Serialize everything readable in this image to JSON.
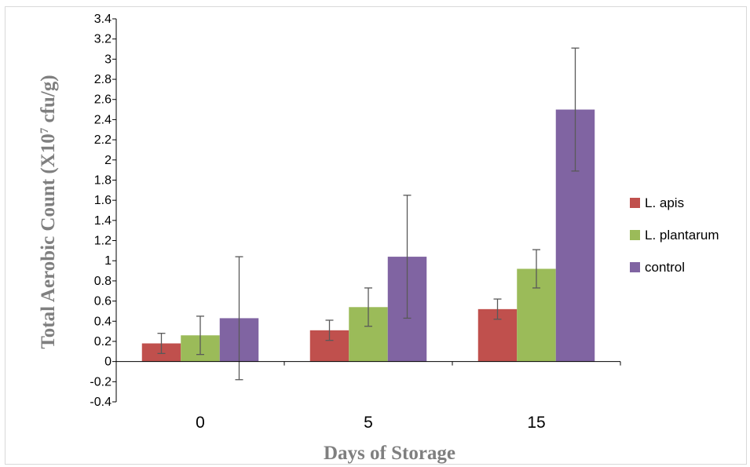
{
  "chart_data": {
    "type": "bar",
    "categories": [
      "0",
      "5",
      "15"
    ],
    "series": [
      {
        "name": "L. apis",
        "color": "#c0504d",
        "values": [
          0.18,
          0.31,
          0.52
        ],
        "errors": [
          0.1,
          0.1,
          0.1
        ]
      },
      {
        "name": "L. plantarum",
        "color": "#9bbb59",
        "values": [
          0.26,
          0.54,
          0.92
        ],
        "errors": [
          0.19,
          0.19,
          0.19
        ]
      },
      {
        "name": "control",
        "color": "#8064a2",
        "values": [
          0.43,
          1.04,
          2.5
        ],
        "errors": [
          0.61,
          0.61,
          0.61
        ]
      }
    ],
    "title": "",
    "xlabel": "Days of Storage",
    "ylabel_main": "Total Aerobic Count (X10",
    "ylabel_sup": "7",
    "ylabel_tail": " cfu/g)",
    "ylim": [
      -0.4,
      3.4
    ],
    "yticks": [
      "3.4",
      "3.2",
      "3",
      "2.8",
      "2.6",
      "2.4",
      "2.2",
      "2",
      "1.8",
      "1.6",
      "1.4",
      "1.2",
      "1",
      "0.8",
      "0.6",
      "0.4",
      "0.2",
      "0",
      "-0.2",
      "-0.4"
    ],
    "grid": false,
    "legend_position": "right"
  }
}
